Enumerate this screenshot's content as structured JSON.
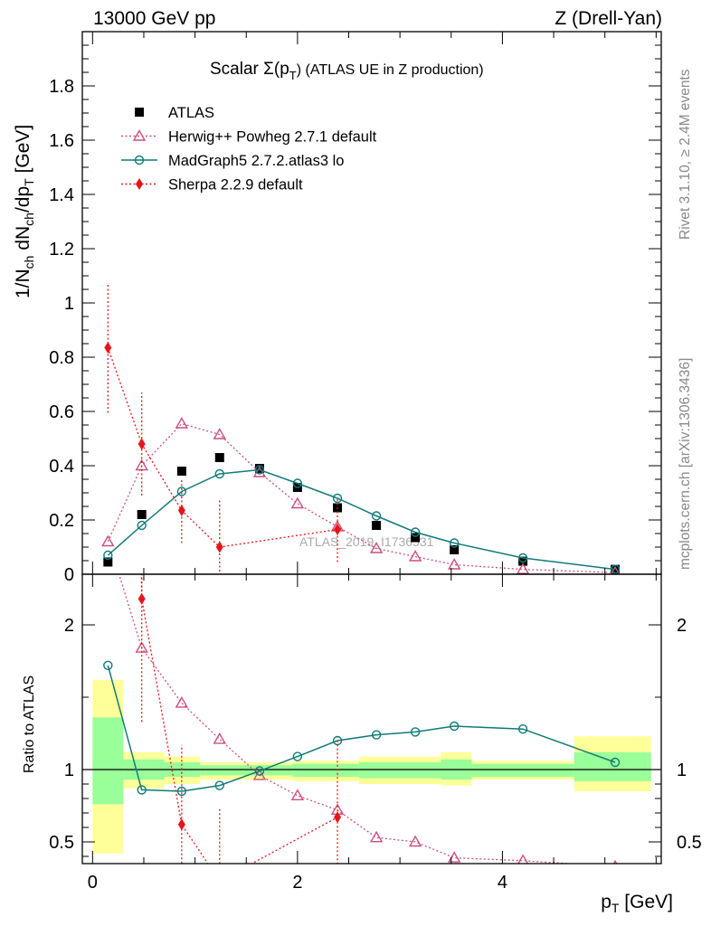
{
  "header": {
    "left": "13000 GeV pp",
    "right": "Z (Drell-Yan)"
  },
  "side_labels": {
    "rivet": "Rivet 3.1.10, ≥ 2.4M events",
    "mcplots": "mcplots.cern.ch [arXiv:1306.3436]"
  },
  "watermark": "ATLAS_2019_I1736531",
  "chart_data": {
    "type": "scatter",
    "title": "Scalar Σ(p_T) (ATLAS UE in Z production)",
    "title_parts": {
      "main": "Scalar Σ(p",
      "sub": "T",
      "tail": ") (ATLAS UE in Z production)"
    },
    "ylabel": "1/N_ch dN_ch/dp_T [GeV]",
    "ylabel_parts": {
      "a": "1/N",
      "b": "ch",
      "c": " dN",
      "d": "ch",
      "e": "/dp",
      "f": "T",
      "g": " [GeV]"
    },
    "xlabel": "p_T [GeV]",
    "xlabel_parts": {
      "a": "p",
      "b": "T",
      "c": " [GeV]"
    },
    "ratio_ylabel": "Ratio to ATLAS",
    "xlim": [
      -0.1,
      5.55
    ],
    "ylim": [
      0,
      2.0
    ],
    "ratio_ylim": [
      0.35,
      2.35
    ],
    "legend_position": "top-left",
    "x_ticks": [
      0,
      2,
      4
    ],
    "x_tick_labels": [
      "0",
      "2",
      "4"
    ],
    "y_ticks": [
      0,
      0.2,
      0.4,
      0.6,
      0.8,
      1.0,
      1.2,
      1.4,
      1.6,
      1.8
    ],
    "y_tick_labels": [
      "0",
      "0.2",
      "0.4",
      "0.6",
      "0.8",
      "1",
      "1.2",
      "1.4",
      "1.6",
      "1.8"
    ],
    "ratio_y_ticks": [
      0.5,
      1,
      2
    ],
    "ratio_y_tick_labels": [
      "0.5",
      "1",
      "2"
    ],
    "ratio_bands": [
      {
        "x0": 0.0,
        "x1": 0.3,
        "y1": [
          0.76,
          1.36
        ],
        "y2": [
          0.42,
          1.62
        ]
      },
      {
        "x0": 0.3,
        "x1": 0.7,
        "y1": [
          0.93,
          1.07
        ],
        "y2": [
          0.87,
          1.12
        ]
      },
      {
        "x0": 0.7,
        "x1": 1.05,
        "y1": [
          0.95,
          1.05
        ],
        "y2": [
          0.9,
          1.09
        ]
      },
      {
        "x0": 1.05,
        "x1": 1.95,
        "y1": [
          0.96,
          1.03
        ],
        "y2": [
          0.93,
          1.05
        ]
      },
      {
        "x0": 1.95,
        "x1": 2.6,
        "y1": [
          0.95,
          1.04
        ],
        "y2": [
          0.92,
          1.06
        ]
      },
      {
        "x0": 2.6,
        "x1": 3.4,
        "y1": [
          0.94,
          1.05
        ],
        "y2": [
          0.9,
          1.09
        ]
      },
      {
        "x0": 3.4,
        "x1": 3.7,
        "y1": [
          0.93,
          1.07
        ],
        "y2": [
          0.89,
          1.12
        ]
      },
      {
        "x0": 3.7,
        "x1": 4.7,
        "y1": [
          0.95,
          1.04
        ],
        "y2": [
          0.93,
          1.06
        ]
      },
      {
        "x0": 4.7,
        "x1": 5.45,
        "y1": [
          0.92,
          1.12
        ],
        "y2": [
          0.85,
          1.23
        ]
      }
    ],
    "series": [
      {
        "name": "ATLAS",
        "style": "data",
        "color": "#000000",
        "x": [
          0.15,
          0.48,
          0.87,
          1.24,
          1.63,
          2.0,
          2.39,
          2.77,
          3.15,
          3.53,
          4.2,
          5.1
        ],
        "y": [
          0.045,
          0.22,
          0.38,
          0.43,
          0.39,
          0.32,
          0.245,
          0.18,
          0.135,
          0.09,
          0.048,
          0.018
        ]
      },
      {
        "name": "Herwig++ Powheg 2.7.1 default",
        "style": "triangle",
        "color": "#cc4f7f",
        "x": [
          0.15,
          0.48,
          0.87,
          1.24,
          1.63,
          2.0,
          2.39,
          2.77,
          3.15,
          3.53,
          4.2,
          5.1
        ],
        "y": [
          0.12,
          0.4,
          0.555,
          0.515,
          0.375,
          0.26,
          0.175,
          0.095,
          0.065,
          0.035,
          0.018,
          0.006
        ],
        "ratio": [
          2.6,
          1.84,
          1.46,
          1.21,
          0.96,
          0.82,
          0.72,
          0.53,
          0.5,
          0.39,
          0.37,
          0.33
        ]
      },
      {
        "name": "MadGraph5 2.7.2.atlas3 lo",
        "style": "circle",
        "color": "#117a7a",
        "x": [
          0.15,
          0.48,
          0.87,
          1.24,
          1.63,
          2.0,
          2.39,
          2.77,
          3.15,
          3.53,
          4.2,
          5.1
        ],
        "y": [
          0.07,
          0.18,
          0.305,
          0.37,
          0.385,
          0.335,
          0.28,
          0.215,
          0.155,
          0.115,
          0.06,
          0.018
        ],
        "ratio": [
          1.72,
          0.86,
          0.85,
          0.89,
          0.99,
          1.09,
          1.2,
          1.24,
          1.26,
          1.3,
          1.28,
          1.05
        ]
      },
      {
        "name": "Sherpa 2.2.9 default",
        "style": "diamond",
        "color": "#e8141a",
        "x": [
          0.15,
          0.48,
          0.87,
          1.24,
          2.39
        ],
        "y": [
          0.835,
          0.48,
          0.235,
          0.1,
          0.165
        ],
        "y_err": [
          0.24,
          0.19,
          0.12,
          0.18,
          0.12
        ],
        "ratio": [
          18.5,
          2.18,
          0.62,
          0.23,
          0.67
        ],
        "ratio_err": [
          0.0,
          0.85,
          0.55,
          0.5,
          0.55
        ]
      }
    ]
  }
}
